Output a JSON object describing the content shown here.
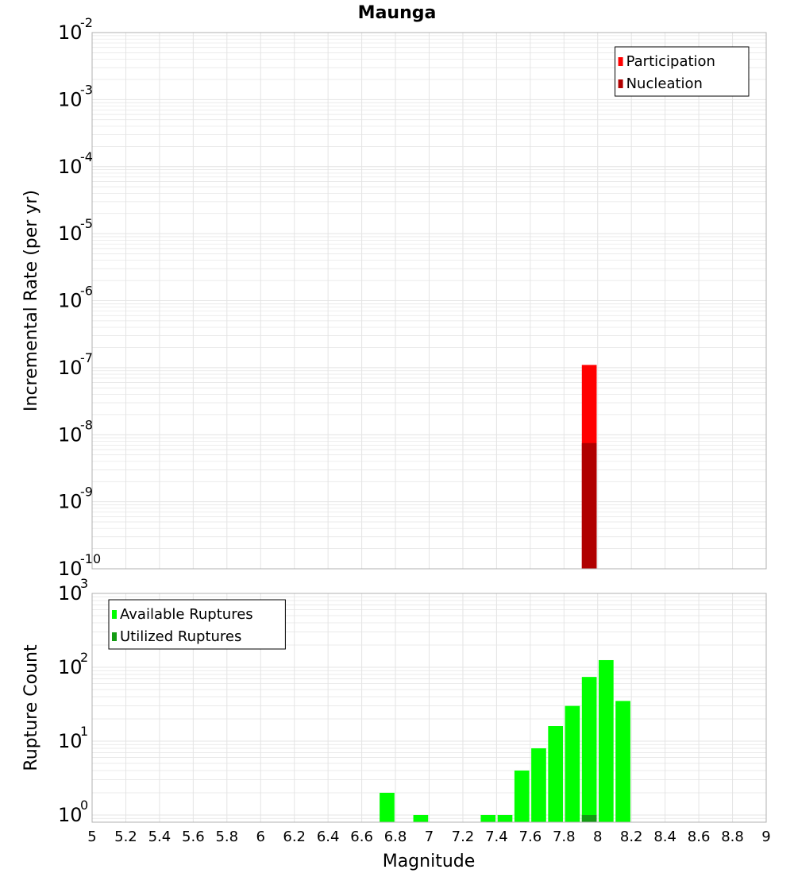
{
  "colors": {
    "participation": "#ff0000",
    "nucleation": "#b00000",
    "available": "#00ff00",
    "utilized": "#129c12",
    "grid": "#e4e4e4",
    "frame": "#b0b0b0"
  },
  "chart_data": {
    "type": "bar",
    "title": "Maunga",
    "xlabel": "Magnitude",
    "xlim": [
      5,
      9
    ],
    "xticks": [
      "5",
      "5.2",
      "5.4",
      "5.6",
      "5.8",
      "6",
      "6.2",
      "6.4",
      "6.6",
      "6.8",
      "7",
      "7.2",
      "7.4",
      "7.6",
      "7.8",
      "8",
      "8.2",
      "8.4",
      "8.6",
      "8.8",
      "9"
    ],
    "panels": [
      {
        "ylabel": "Incremental Rate (per yr)",
        "yscale": "log",
        "ylim": [
          1e-10,
          0.01
        ],
        "ytick_exponents": [
          "-10",
          "-9",
          "-8",
          "-7",
          "-6",
          "-5",
          "-4",
          "-3",
          "-2"
        ],
        "ytick_base": "10",
        "legend_position": "top-right",
        "series": [
          {
            "name": "Participation",
            "color": "participation",
            "bars": [
              {
                "x": 7.95,
                "y": 1.1e-07
              }
            ]
          },
          {
            "name": "Nucleation",
            "color": "nucleation",
            "bars": [
              {
                "x": 7.95,
                "y": 7.5e-09
              }
            ]
          }
        ]
      },
      {
        "ylabel": "Rupture Count",
        "yscale": "log",
        "ylim": [
          0.8,
          1000
        ],
        "ytick_exponents": [
          "0",
          "1",
          "2",
          "3"
        ],
        "ytick_base": "10",
        "legend_position": "top-left",
        "series": [
          {
            "name": "Available Ruptures",
            "color": "available",
            "bars": [
              {
                "x": 6.75,
                "y": 2
              },
              {
                "x": 6.95,
                "y": 1
              },
              {
                "x": 7.35,
                "y": 1
              },
              {
                "x": 7.45,
                "y": 1
              },
              {
                "x": 7.55,
                "y": 4
              },
              {
                "x": 7.65,
                "y": 8
              },
              {
                "x": 7.75,
                "y": 16
              },
              {
                "x": 7.85,
                "y": 30
              },
              {
                "x": 7.95,
                "y": 74
              },
              {
                "x": 8.05,
                "y": 125
              },
              {
                "x": 8.15,
                "y": 35
              }
            ]
          },
          {
            "name": "Utilized Ruptures",
            "color": "utilized",
            "bars": [
              {
                "x": 7.95,
                "y": 1
              }
            ]
          }
        ]
      }
    ]
  }
}
